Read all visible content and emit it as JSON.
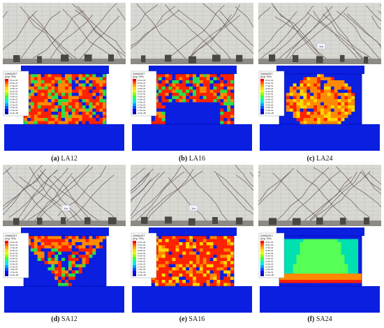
{
  "figure": {
    "panels": [
      {
        "letter": "(a)",
        "name": "LA12",
        "legend_title": "DAMAGET",
        "legend_sub": "(Avg: 75%)",
        "scale": "1m",
        "pattern": "full"
      },
      {
        "letter": "(b)",
        "name": "LA16",
        "legend_title": "DAMAGET",
        "legend_sub": "(Avg: 75%)",
        "scale": "1m",
        "pattern": "arch"
      },
      {
        "letter": "(c)",
        "name": "LA24",
        "legend_title": "DAMAGET",
        "legend_sub": "(Avg: 75%)",
        "scale": "1m",
        "pattern": "core"
      },
      {
        "letter": "(d)",
        "name": "SA12",
        "legend_title": "DAMAGET",
        "legend_sub": "(Avg: 75%)",
        "scale": "1m",
        "pattern": "fan"
      },
      {
        "letter": "(e)",
        "name": "SA16",
        "legend_title": "DAMAGET",
        "legend_sub": "(Avg: 75%)",
        "scale": "1m",
        "pattern": "dense"
      },
      {
        "letter": "(f)",
        "name": "SA24",
        "legend_title": "DAMAGEC",
        "legend_sub": "(Avg: 75%)",
        "scale": "1m",
        "pattern": "band"
      }
    ],
    "legend_values": [
      "+9.1e-01",
      "+8.4e-01",
      "+7.6e-01",
      "+6.8e-01",
      "+6.1e-01",
      "+5.3e-01",
      "+4.6e-01",
      "+3.8e-01",
      "+3.0e-01",
      "+2.3e-01",
      "+1.5e-01",
      "+7.6e-02",
      "+0.0e+00"
    ],
    "legend_colors": [
      "#ff0000",
      "#ff5a00",
      "#ffa500",
      "#ffd800",
      "#e6ff00",
      "#9cff00",
      "#33ff33",
      "#00ff9c",
      "#00e6e6",
      "#00a0ff",
      "#0050ff",
      "#0000ff",
      "#0000b0"
    ],
    "colors": {
      "blue": "#0a1fe0",
      "red": "#ff2200",
      "orange": "#ff8a00",
      "green": "#29e04a",
      "wall_photo": "#d9d9d4"
    }
  }
}
